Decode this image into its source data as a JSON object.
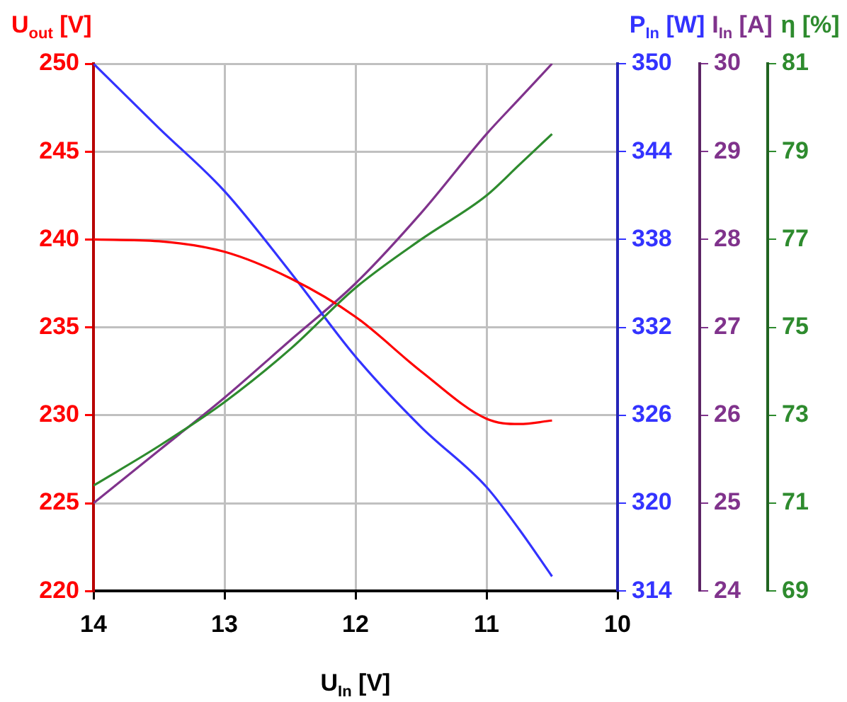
{
  "chart_data": [
    {
      "type": "line",
      "xlabel": "U$_{In}$ [V]",
      "ylabel": "U$_{out}$ [V]",
      "y2label": "P$_{In}$ [W]",
      "y3label": "I$_{In}$ [A]",
      "x": [
        14,
        13.5,
        13,
        12.5,
        12,
        11.5,
        11,
        10.75,
        10.5
      ],
      "xlim": [
        14,
        10
      ],
      "xticks": [
        14,
        13,
        12,
        11,
        10
      ],
      "ylim": [
        220,
        250
      ],
      "yticks": [
        220,
        225,
        230,
        235,
        240,
        245,
        250
      ],
      "y2lim": [
        314,
        350
      ],
      "y2ticks": [
        314,
        320,
        326,
        332,
        338,
        344,
        350
      ],
      "y3lim": [
        24,
        30
      ],
      "y3ticks": [
        24,
        25,
        26,
        27,
        28,
        29,
        30
      ],
      "grid": true,
      "marker": "none",
      "line_style": "solid",
      "series": [
        {
          "color": "#ff0000",
          "values": [
            240,
            239.9,
            239.3,
            237.8,
            235.6,
            232.5,
            229.8,
            229.5,
            229.7
          ]
        },
        {
          "color": "#3333ff",
          "axis": "y2",
          "values": [
            350,
            345.6,
            341.3,
            335.8,
            330.0,
            325.2,
            321.1,
            318.2,
            315.0
          ]
        },
        {
          "color": "#80338c",
          "axis": "y3",
          "values": [
            25,
            25.6,
            26.2,
            26.85,
            27.5,
            28.3,
            29.2,
            29.6,
            30
          ]
        }
      ]
    },
    {
      "type": "line",
      "ylabel": "η [%]",
      "x": [
        14,
        13.5,
        13,
        12.5,
        12,
        11.5,
        11,
        10.75,
        10.5
      ],
      "xlim": [
        14,
        10
      ],
      "ylim": [
        69,
        81
      ],
      "yticks": [
        69,
        71,
        73,
        75,
        77,
        79,
        81
      ],
      "tick_labels": "y",
      "marker": "none",
      "line_style": "solid",
      "series": [
        {
          "color": "#2e8b2e",
          "values": [
            71.4,
            72.3,
            73.3,
            74.5,
            75.9,
            77.0,
            78.0,
            78.7,
            79.4
          ]
        }
      ]
    }
  ]
}
